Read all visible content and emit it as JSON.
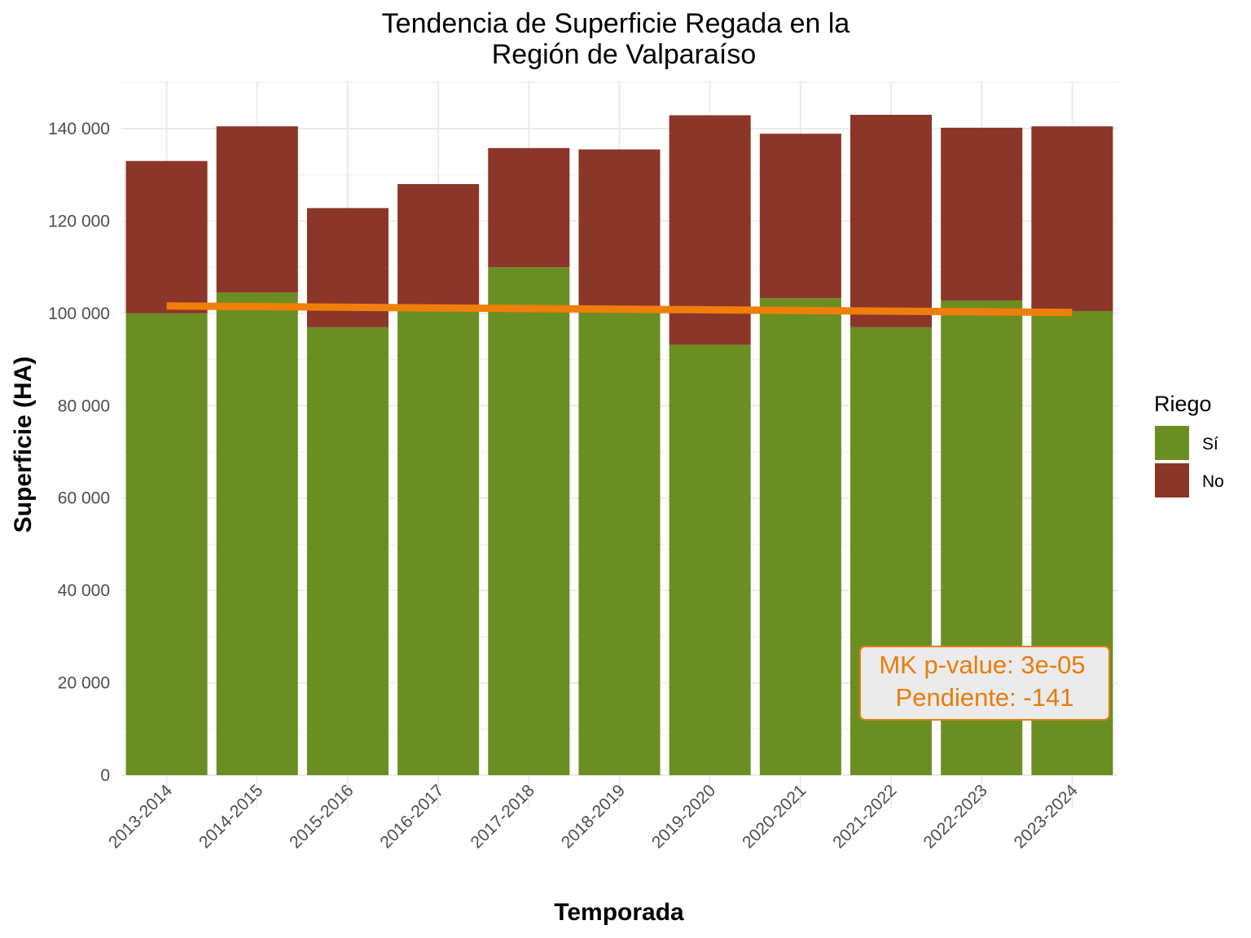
{
  "chart_data": {
    "type": "bar",
    "stacked": true,
    "title": "Tendencia de Superficie Regada en la",
    "title_line2": "Región de Valparaíso",
    "xlabel": "Temporada",
    "ylabel": "Superficie (HA)",
    "ylim": [
      0,
      150000
    ],
    "yticks": [
      0,
      20000,
      40000,
      60000,
      80000,
      100000,
      120000,
      140000
    ],
    "ytick_labels": [
      "0",
      "20 000",
      "40 000",
      "60 000",
      "80 000",
      "100 000",
      "120 000",
      "140 000"
    ],
    "grid": true,
    "legend": {
      "title": "Riego",
      "placement": "right"
    },
    "categories": [
      "2013-2014",
      "2014-2015",
      "2015-2016",
      "2016-2017",
      "2017-2018",
      "2018-2019",
      "2019-2020",
      "2020-2021",
      "2021-2022",
      "2022-2023",
      "2023-2024"
    ],
    "series": [
      {
        "name": "Sí",
        "color": "#6b8e23",
        "values": [
          100000,
          104500,
          97000,
          101000,
          110000,
          100500,
          93200,
          103300,
          97000,
          102800,
          100500
        ]
      },
      {
        "name": "No",
        "color": "#8b3629",
        "values": [
          33000,
          36000,
          25800,
          27000,
          25800,
          35000,
          49700,
          35600,
          46000,
          37400,
          40000
        ]
      }
    ],
    "trend_line": {
      "color": "#f07f09",
      "start": 101600,
      "end": 100200
    },
    "annotation": {
      "line1": "MK p-value: 3e-05",
      "line2": "Pendiente: -141",
      "text_color": "#e87d0d",
      "box_fill": "#ebebeb"
    }
  }
}
